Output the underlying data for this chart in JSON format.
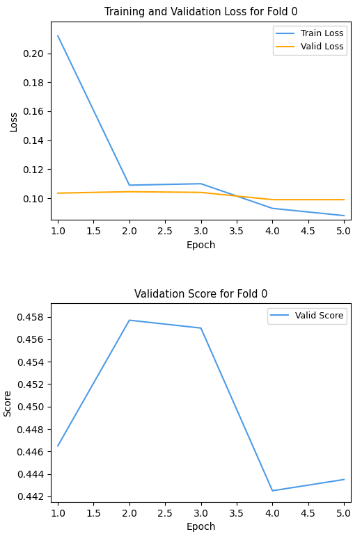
{
  "epochs": [
    1,
    2,
    3,
    4,
    5
  ],
  "train_loss": [
    0.212,
    0.109,
    0.11,
    0.093,
    0.088
  ],
  "valid_loss": [
    0.1035,
    0.1045,
    0.104,
    0.099,
    0.099
  ],
  "valid_score": [
    0.4465,
    0.4577,
    0.457,
    0.4425,
    0.4435
  ],
  "train_color": "#4C9BE8",
  "valid_loss_color": "#FFA500",
  "valid_score_color": "#4C9BE8",
  "title_loss": "Training and Validation Loss for Fold 0",
  "title_score": "Validation Score for Fold 0",
  "xlabel": "Epoch",
  "ylabel_loss": "Loss",
  "ylabel_score": "Score",
  "legend_train": "Train Loss",
  "legend_valid_loss": "Valid Loss",
  "legend_valid_score": "Valid Score",
  "loss_ylim": [
    0.085,
    0.222
  ],
  "score_ylim": [
    0.4415,
    0.4592
  ],
  "loss_yticks": [
    0.1,
    0.12,
    0.14,
    0.16,
    0.18,
    0.2
  ],
  "score_yticks": [
    0.442,
    0.444,
    0.446,
    0.448,
    0.45,
    0.452,
    0.454,
    0.456,
    0.458
  ],
  "xticks": [
    1.0,
    1.5,
    2.0,
    2.5,
    3.0,
    3.5,
    4.0,
    4.5,
    5.0
  ]
}
